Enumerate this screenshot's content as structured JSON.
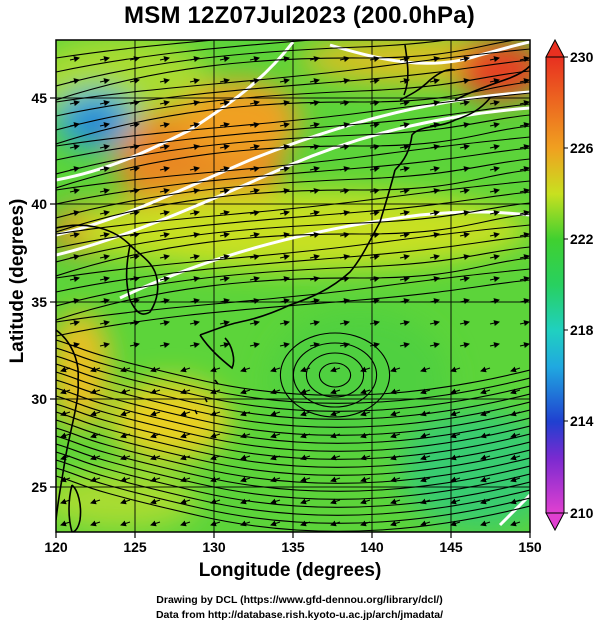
{
  "title": "MSM 12Z07Jul2023 (200.0hPa)",
  "x_axis": {
    "label": "Longitude (degrees)",
    "ticks": [
      "120",
      "125",
      "130",
      "135",
      "140",
      "145",
      "150"
    ]
  },
  "y_axis": {
    "label": "Latitude  (degrees)",
    "ticks": [
      "25",
      "30",
      "35",
      "40",
      "45"
    ]
  },
  "colorbar": {
    "ticks": [
      "210",
      "214",
      "218",
      "222",
      "226",
      "230"
    ],
    "min": 210,
    "max": 230
  },
  "credits": {
    "line1": "Drawing by DCL (https://www.gfd-dennou.org/library/dcl/)",
    "line2": "Data from http://database.rish.kyoto-u.ac.jp/arch/jmadata/"
  },
  "colors": {
    "c210": "#e040d0",
    "c214": "#2040d0",
    "c218": "#20d0c0",
    "c222": "#30d040",
    "c226": "#d8e020",
    "c230": "#e83020"
  }
}
